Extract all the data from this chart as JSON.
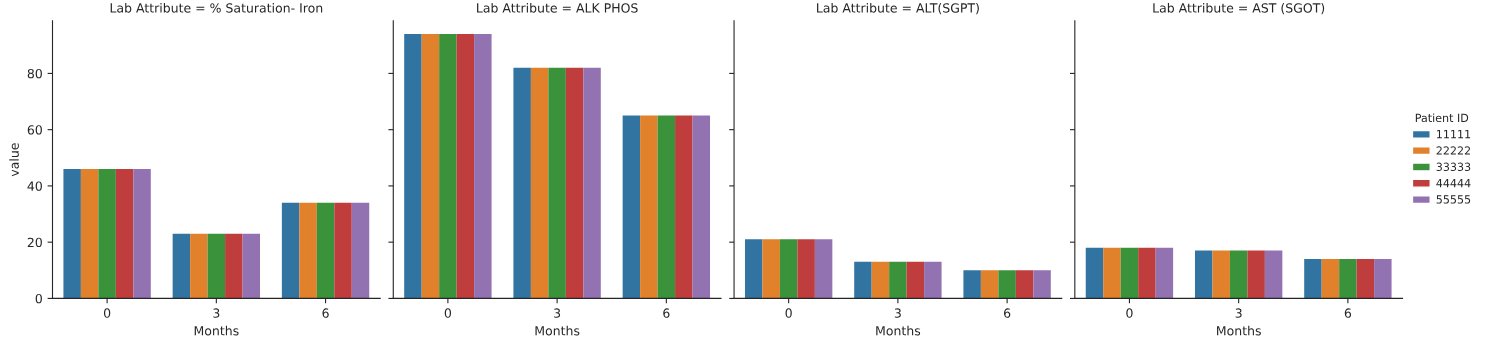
{
  "chart_data": [
    {
      "type": "bar",
      "title": "Lab Attribute = % Saturation- Iron",
      "xlabel": "Months",
      "ylabel": "value",
      "categories": [
        "0",
        "3",
        "6"
      ],
      "ylim": [
        0,
        98.7
      ],
      "yticks": [
        0,
        20,
        40,
        60,
        80
      ],
      "series": [
        {
          "color": "#3274a1",
          "values": [
            46,
            23,
            34
          ]
        },
        {
          "color": "#e1812c",
          "values": [
            46,
            23,
            34
          ]
        },
        {
          "color": "#3a923a",
          "values": [
            46,
            23,
            34
          ]
        },
        {
          "color": "#c03d3e",
          "values": [
            46,
            23,
            34
          ]
        },
        {
          "color": "#9372b2",
          "values": [
            46,
            23,
            34
          ]
        }
      ]
    },
    {
      "type": "bar",
      "title": "Lab Attribute = ALK PHOS",
      "xlabel": "Months",
      "categories": [
        "0",
        "3",
        "6"
      ],
      "ylim": [
        0,
        98.7
      ],
      "yticks": [
        0,
        20,
        40,
        60,
        80
      ],
      "tick_labels": "x",
      "series": [
        {
          "color": "#3274a1",
          "values": [
            94,
            82,
            65
          ]
        },
        {
          "color": "#e1812c",
          "values": [
            94,
            82,
            65
          ]
        },
        {
          "color": "#3a923a",
          "values": [
            94,
            82,
            65
          ]
        },
        {
          "color": "#c03d3e",
          "values": [
            94,
            82,
            65
          ]
        },
        {
          "color": "#9372b2",
          "values": [
            94,
            82,
            65
          ]
        }
      ]
    },
    {
      "type": "bar",
      "title": "Lab Attribute = ALT(SGPT)",
      "xlabel": "Months",
      "categories": [
        "0",
        "3",
        "6"
      ],
      "ylim": [
        0,
        98.7
      ],
      "yticks": [
        0,
        20,
        40,
        60,
        80
      ],
      "tick_labels": "x",
      "series": [
        {
          "color": "#3274a1",
          "values": [
            21,
            13,
            10
          ]
        },
        {
          "color": "#e1812c",
          "values": [
            21,
            13,
            10
          ]
        },
        {
          "color": "#3a923a",
          "values": [
            21,
            13,
            10
          ]
        },
        {
          "color": "#c03d3e",
          "values": [
            21,
            13,
            10
          ]
        },
        {
          "color": "#9372b2",
          "values": [
            21,
            13,
            10
          ]
        }
      ]
    },
    {
      "type": "bar",
      "title": "Lab Attribute = AST (SGOT)",
      "xlabel": "Months",
      "categories": [
        "0",
        "3",
        "6"
      ],
      "ylim": [
        0,
        98.7
      ],
      "yticks": [
        0,
        20,
        40,
        60,
        80
      ],
      "tick_labels": "x",
      "legend": "right",
      "legend_title": "Patient ID",
      "series": [
        {
          "name": "11111",
          "color": "#3274a1",
          "values": [
            18,
            17,
            14
          ]
        },
        {
          "name": "22222",
          "color": "#e1812c",
          "values": [
            18,
            17,
            14
          ]
        },
        {
          "name": "33333",
          "color": "#3a923a",
          "values": [
            18,
            17,
            14
          ]
        },
        {
          "name": "44444",
          "color": "#c03d3e",
          "values": [
            18,
            17,
            14
          ]
        },
        {
          "name": "55555",
          "color": "#9372b2",
          "values": [
            18,
            17,
            14
          ]
        }
      ]
    }
  ]
}
